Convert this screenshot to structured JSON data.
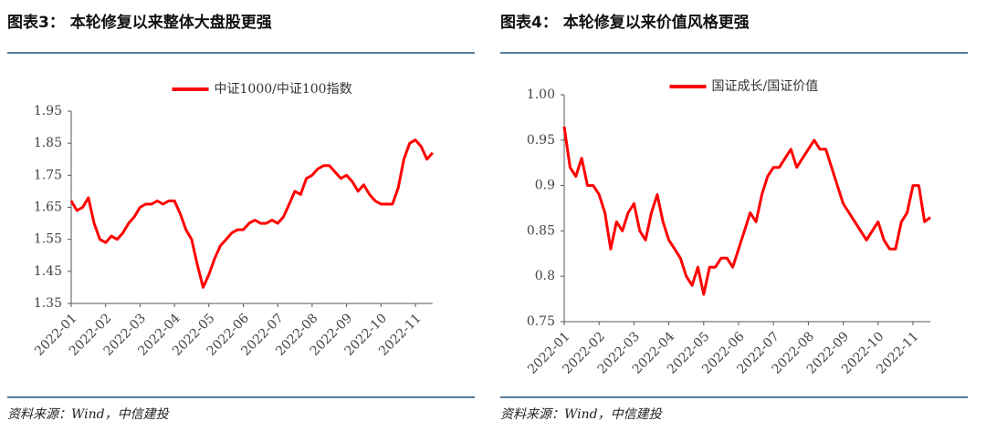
{
  "chart_data": [
    {
      "type": "line",
      "title": "图表3： 本轮修复以来整体大盘股更强",
      "source": "资料来源：Wind，中信建投",
      "categories": [
        "2022-01",
        null,
        null,
        null,
        null,
        null,
        "2022-02",
        null,
        null,
        null,
        null,
        null,
        "2022-03",
        null,
        null,
        null,
        null,
        null,
        "2022-04",
        null,
        null,
        null,
        null,
        null,
        "2022-05",
        null,
        null,
        null,
        null,
        null,
        "2022-06",
        null,
        null,
        null,
        null,
        null,
        "2022-07",
        null,
        null,
        null,
        null,
        null,
        "2022-08",
        null,
        null,
        null,
        null,
        null,
        "2022-09",
        null,
        null,
        null,
        null,
        null,
        "2022-10",
        null,
        null,
        null,
        null,
        null,
        "2022-11",
        null,
        null,
        null
      ],
      "series": [
        {
          "name": "中证1000/中证100指数",
          "color": "#ff0000",
          "values": [
            1.67,
            1.64,
            1.65,
            1.68,
            1.6,
            1.55,
            1.54,
            1.56,
            1.55,
            1.57,
            1.6,
            1.62,
            1.65,
            1.66,
            1.66,
            1.67,
            1.66,
            1.67,
            1.67,
            1.63,
            1.58,
            1.55,
            1.47,
            1.4,
            1.44,
            1.49,
            1.53,
            1.55,
            1.57,
            1.58,
            1.58,
            1.6,
            1.61,
            1.6,
            1.6,
            1.61,
            1.6,
            1.62,
            1.66,
            1.7,
            1.69,
            1.74,
            1.75,
            1.77,
            1.78,
            1.78,
            1.76,
            1.74,
            1.75,
            1.73,
            1.7,
            1.72,
            1.69,
            1.67,
            1.66,
            1.66,
            1.66,
            1.71,
            1.8,
            1.85,
            1.86,
            1.84,
            1.8,
            1.82
          ]
        }
      ],
      "ylim": [
        1.35,
        1.95
      ],
      "yticks": [
        1.35,
        1.45,
        1.55,
        1.65,
        1.75,
        1.85,
        1.95
      ],
      "legend": "top"
    },
    {
      "type": "line",
      "title": "图表4： 本轮修复以来价值风格更强",
      "source": "资料来源：Wind，中信建投",
      "categories": [
        "2022-01",
        null,
        null,
        null,
        null,
        null,
        "2022-02",
        null,
        null,
        null,
        null,
        null,
        "2022-03",
        null,
        null,
        null,
        null,
        null,
        "2022-04",
        null,
        null,
        null,
        null,
        null,
        "2022-05",
        null,
        null,
        null,
        null,
        null,
        "2022-06",
        null,
        null,
        null,
        null,
        null,
        "2022-07",
        null,
        null,
        null,
        null,
        null,
        "2022-08",
        null,
        null,
        null,
        null,
        null,
        "2022-09",
        null,
        null,
        null,
        null,
        null,
        "2022-10",
        null,
        null,
        null,
        null,
        null,
        "2022-11",
        null,
        null,
        null
      ],
      "series": [
        {
          "name": "国证成长/国证价值",
          "color": "#ff0000",
          "values": [
            0.965,
            0.92,
            0.91,
            0.93,
            0.9,
            0.9,
            0.89,
            0.87,
            0.83,
            0.86,
            0.85,
            0.87,
            0.88,
            0.85,
            0.84,
            0.87,
            0.89,
            0.86,
            0.84,
            0.83,
            0.82,
            0.8,
            0.79,
            0.81,
            0.78,
            0.81,
            0.81,
            0.82,
            0.82,
            0.81,
            0.83,
            0.85,
            0.87,
            0.86,
            0.89,
            0.91,
            0.92,
            0.92,
            0.93,
            0.94,
            0.92,
            0.93,
            0.94,
            0.95,
            0.94,
            0.94,
            0.92,
            0.9,
            0.88,
            0.87,
            0.86,
            0.85,
            0.84,
            0.85,
            0.86,
            0.84,
            0.83,
            0.83,
            0.86,
            0.87,
            0.9,
            0.9,
            0.86,
            0.865
          ]
        }
      ],
      "ylim": [
        0.75,
        1.0
      ],
      "yticks": [
        0.75,
        0.8,
        0.85,
        0.9,
        0.95,
        {
          "value": 1.0,
          "label": "1.00"
        }
      ],
      "legend": "top"
    }
  ]
}
